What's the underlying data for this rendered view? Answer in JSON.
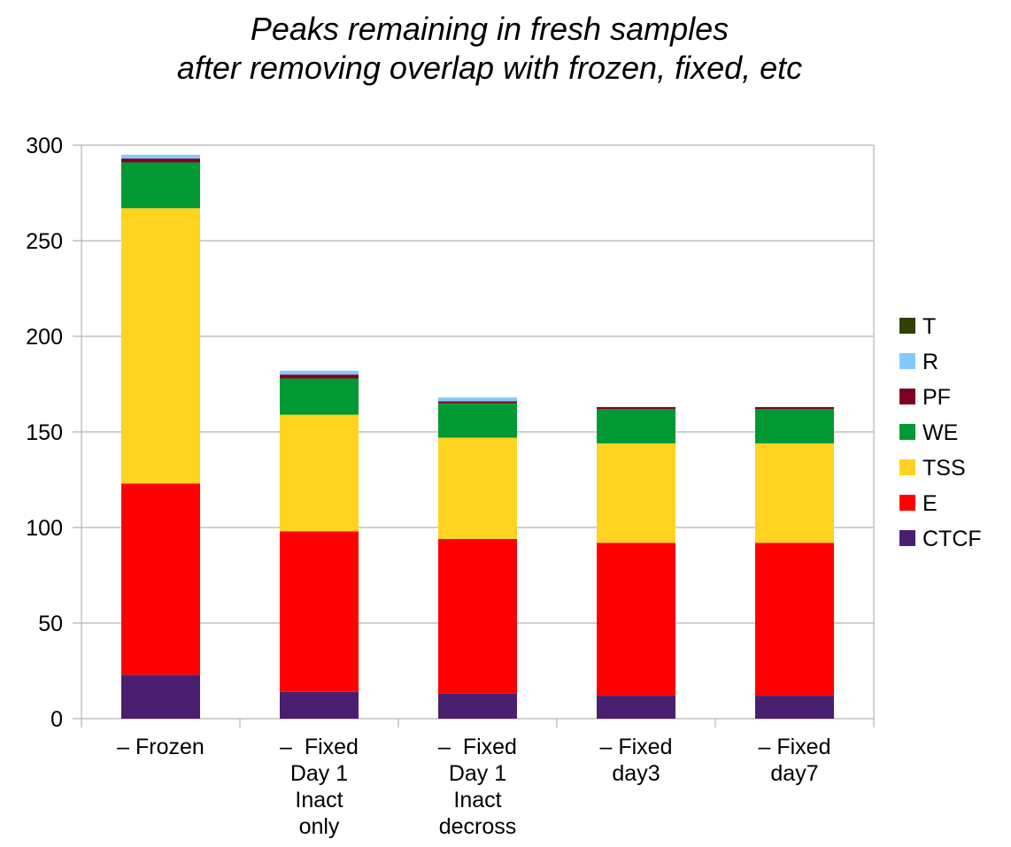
{
  "chart_data": {
    "type": "bar",
    "stacked": true,
    "title": [
      "Peaks remaining in fresh samples",
      "after removing overlap with frozen, fixed, etc"
    ],
    "xlabel": "",
    "ylabel": "",
    "ylim": [
      0,
      300
    ],
    "yticks": [
      0,
      50,
      100,
      150,
      200,
      250,
      300
    ],
    "grid": "horizontal",
    "legend_position": "right",
    "categories": [
      [
        "– Frozen"
      ],
      [
        "–  Fixed",
        "Day 1",
        "Inact",
        "only"
      ],
      [
        "–  Fixed",
        "Day 1",
        "Inact",
        "decross"
      ],
      [
        "– Fixed",
        "day3"
      ],
      [
        "– Fixed",
        "day7"
      ]
    ],
    "series": [
      {
        "name": "CTCF",
        "color": "#4b1f6f",
        "values": [
          23,
          14,
          13,
          12,
          12
        ]
      },
      {
        "name": "E",
        "color": "#ff0000",
        "values": [
          100,
          84,
          81,
          80,
          80
        ]
      },
      {
        "name": "TSS",
        "color": "#ffd320",
        "values": [
          144,
          61,
          53,
          52,
          52
        ]
      },
      {
        "name": "WE",
        "color": "#009933",
        "values": [
          24,
          19,
          18,
          18,
          18
        ]
      },
      {
        "name": "PF",
        "color": "#7e0021",
        "values": [
          2,
          2,
          1,
          1,
          1
        ]
      },
      {
        "name": "R",
        "color": "#83caff",
        "values": [
          2,
          2,
          2,
          0,
          0
        ]
      },
      {
        "name": "T",
        "color": "#314004",
        "values": [
          0,
          0,
          0,
          0,
          0
        ]
      }
    ]
  }
}
